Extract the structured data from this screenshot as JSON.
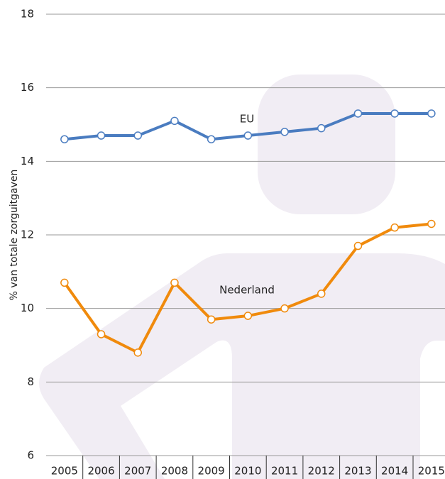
{
  "chart_data": {
    "type": "line",
    "y_label": "% van totale zorguitgaven",
    "categories": [
      "2005",
      "2006",
      "2007",
      "2008",
      "2009",
      "2010",
      "2011",
      "2012",
      "2013",
      "2014",
      "2015"
    ],
    "series": [
      {
        "name": "EU",
        "color": "#4a7cc0",
        "values": [
          14.6,
          14.7,
          14.7,
          15.1,
          14.6,
          14.7,
          14.8,
          14.9,
          15.3,
          15.3,
          15.3
        ]
      },
      {
        "name": "Nederland",
        "color": "#f08a0c",
        "values": [
          10.7,
          9.3,
          8.8,
          10.7,
          9.7,
          9.8,
          10.0,
          10.4,
          11.7,
          12.2,
          12.3
        ]
      }
    ],
    "ylim": [
      6,
      18
    ],
    "yticks": [
      6,
      8,
      10,
      12,
      14,
      16,
      18
    ],
    "grid": true
  }
}
